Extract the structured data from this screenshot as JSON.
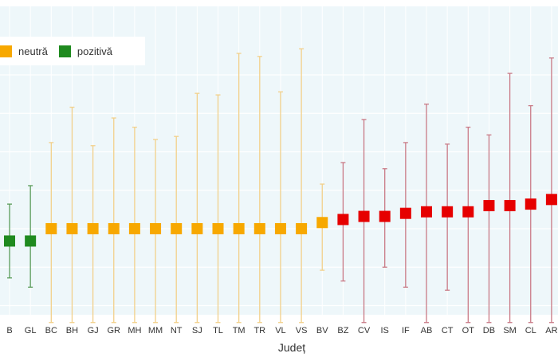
{
  "colors": {
    "background": "#ffffff",
    "plot_bg": "#eef7fa",
    "grid": "#ffffff",
    "neutra": "#f7a800",
    "neutra_bar": "#f2d08a",
    "pozitiva": "#1f8a1f",
    "pozitiva_bar": "#5a9c5a",
    "negativa": "#e60000",
    "negativa_bar": "#c97a86"
  },
  "legend": {
    "items": [
      {
        "label": "neutră",
        "color": "#f7a800"
      },
      {
        "label": "pozitivă",
        "color": "#1f8a1f"
      }
    ]
  },
  "chart_data": {
    "type": "scatter",
    "title": "",
    "xlabel": "Județ",
    "ylabel": "",
    "grid": true,
    "legend_position": "top-left",
    "ylim": [
      -0.8,
      1.1
    ],
    "categories": [
      "B",
      "GL",
      "BC",
      "BH",
      "GJ",
      "GR",
      "MH",
      "MM",
      "NT",
      "SJ",
      "TL",
      "TM",
      "TR",
      "VL",
      "VS",
      "BV",
      "BZ",
      "CV",
      "IS",
      "IF",
      "AB",
      "CT",
      "OT",
      "DB",
      "SM",
      "CL",
      "AR"
    ],
    "series": [
      {
        "name": "pozitivă",
        "category_indices": [
          0,
          1
        ],
        "values": [
          -0.08,
          -0.08
        ],
        "lower": [
          -0.32,
          -0.38
        ],
        "upper": [
          0.16,
          0.28
        ]
      },
      {
        "name": "neutră",
        "category_indices": [
          2,
          3,
          4,
          5,
          6,
          7,
          8,
          9,
          10,
          11,
          12,
          13,
          14,
          15
        ],
        "values": [
          0.0,
          0.0,
          0.0,
          0.0,
          0.0,
          0.0,
          0.0,
          0.0,
          0.0,
          0.0,
          0.0,
          0.0,
          0.0,
          0.04
        ],
        "lower": [
          -0.61,
          -0.61,
          -0.61,
          -0.61,
          -0.61,
          -0.61,
          -0.61,
          -0.61,
          -0.61,
          -0.61,
          -0.61,
          -0.61,
          -0.61,
          -0.27
        ],
        "upper": [
          0.56,
          0.79,
          0.54,
          0.72,
          0.66,
          0.58,
          0.6,
          0.88,
          0.87,
          1.14,
          1.12,
          0.89,
          1.17,
          0.29
        ]
      },
      {
        "name": "",
        "category_indices": [
          16,
          17,
          18,
          19,
          20,
          21,
          22,
          23,
          24,
          25,
          26
        ],
        "values": [
          0.06,
          0.08,
          0.08,
          0.1,
          0.11,
          0.11,
          0.11,
          0.15,
          0.15,
          0.16,
          0.19
        ],
        "lower": [
          -0.34,
          -0.61,
          -0.25,
          -0.38,
          -0.61,
          -0.4,
          -0.61,
          -0.61,
          -0.61,
          -0.61,
          -0.61
        ],
        "upper": [
          0.43,
          0.71,
          0.39,
          0.56,
          0.81,
          0.55,
          0.66,
          0.61,
          1.01,
          0.8,
          1.11
        ]
      }
    ]
  }
}
